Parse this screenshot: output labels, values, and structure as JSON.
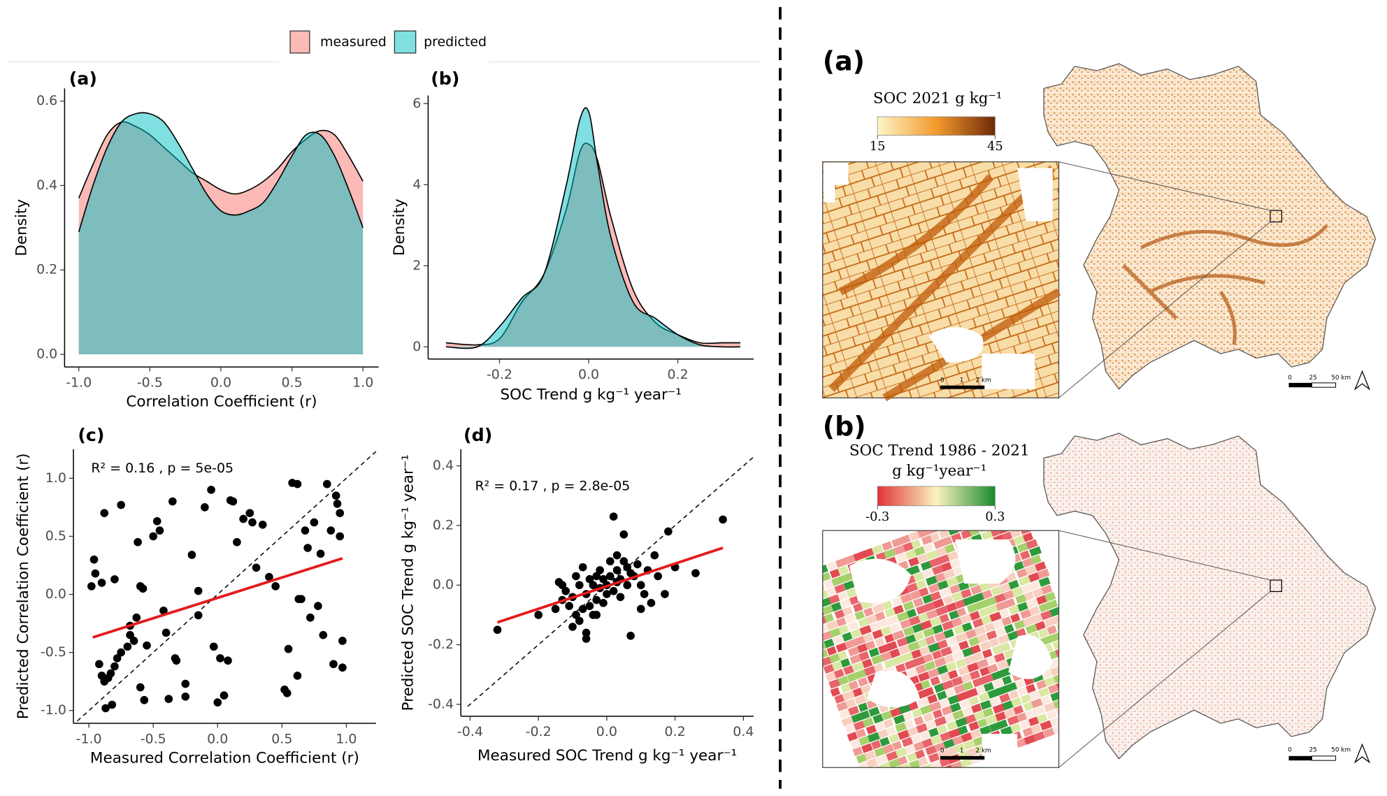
{
  "chart_data": [
    {
      "type": "area",
      "label": "(a)",
      "xlabel": "Correlation Coefficient (r)",
      "ylabel": "Density",
      "x": [
        -1,
        -0.9,
        -0.8,
        -0.7,
        -0.6,
        -0.5,
        -0.4,
        -0.3,
        -0.2,
        -0.1,
        0,
        0.1,
        0.2,
        0.3,
        0.4,
        0.5,
        0.6,
        0.7,
        0.8,
        0.9,
        1
      ],
      "series": [
        {
          "name": "measured",
          "color": "#f8766d",
          "values": [
            0.37,
            0.45,
            0.52,
            0.55,
            0.54,
            0.52,
            0.49,
            0.46,
            0.43,
            0.41,
            0.39,
            0.38,
            0.39,
            0.41,
            0.44,
            0.48,
            0.51,
            0.53,
            0.52,
            0.47,
            0.41
          ]
        },
        {
          "name": "predicted",
          "color": "#00bfc4",
          "values": [
            0.29,
            0.4,
            0.49,
            0.55,
            0.57,
            0.57,
            0.55,
            0.5,
            0.44,
            0.38,
            0.34,
            0.33,
            0.34,
            0.36,
            0.41,
            0.47,
            0.52,
            0.52,
            0.47,
            0.39,
            0.3
          ]
        }
      ],
      "xlim": [
        -1.1,
        1.11
      ],
      "ylim": [
        -0.03,
        0.63
      ],
      "xticks": [
        {
          "value": -1,
          "label": "-1.0"
        },
        -0.5,
        {
          "value": 0,
          "label": "0.0"
        },
        0.5,
        {
          "value": 1,
          "label": "1.0"
        }
      ],
      "yticks": [
        {
          "value": 0,
          "label": "0.0"
        },
        0.2,
        0.4,
        0.6
      ]
    },
    {
      "type": "area",
      "label": "(b)",
      "xlabel": "SOC Trend g kg⁻¹ year⁻¹",
      "ylabel": "Density",
      "x": [
        -0.32,
        -0.25,
        -0.2,
        -0.15,
        -0.1,
        -0.05,
        -0.02,
        0,
        0.02,
        0.05,
        0.1,
        0.15,
        0.2,
        0.25,
        0.3,
        0.34
      ],
      "series": [
        {
          "name": "measured",
          "color": "#f8766d",
          "values": [
            0.1,
            0.05,
            0.2,
            1.1,
            1.8,
            3.4,
            4.8,
            5.0,
            4.6,
            3.2,
            1.4,
            0.6,
            0.3,
            0.1,
            0.1,
            0.1
          ]
        },
        {
          "name": "predicted",
          "color": "#00bfc4",
          "values": [
            0,
            0,
            0.5,
            1.2,
            1.8,
            4.0,
            5.6,
            5.8,
            4.5,
            2.7,
            1.1,
            0.7,
            0.3,
            0.05,
            0,
            0
          ]
        }
      ],
      "xlim": [
        -0.36,
        0.37
      ],
      "ylim": [
        -0.3,
        6.2
      ],
      "xticks": [
        -0.2,
        {
          "value": 0,
          "label": "0.0"
        },
        0.2
      ],
      "yticks": [
        0,
        2,
        4,
        6
      ]
    },
    {
      "type": "scatter",
      "label": "(c)",
      "annotation": "R² = 0.16 , p = 5e-05",
      "xlabel": "Measured Correlation Coefficient (r)",
      "ylabel": "Predicted Correlation Coefficient (r)",
      "color": "#000000",
      "x": [
        -0.98,
        -0.96,
        -0.95,
        -0.9,
        -0.88,
        -0.8,
        -0.75,
        -0.92,
        -0.9,
        -0.88,
        -0.85,
        -0.83,
        -0.8,
        -0.78,
        -0.75,
        -0.7,
        -0.68,
        -0.65,
        -0.63,
        -0.62,
        -0.6,
        -0.58,
        -0.55,
        -0.5,
        -0.47,
        -0.45,
        -0.42,
        -0.4,
        -0.35,
        -0.33,
        -0.32,
        -0.25,
        -0.25,
        -0.2,
        -0.15,
        -0.1,
        -0.05,
        -0.03,
        0,
        0.02,
        0.05,
        0.08,
        0.1,
        0.12,
        0.15,
        0.2,
        0.25,
        0.27,
        0.3,
        0.35,
        0.4,
        0.45,
        0.52,
        0.54,
        0.55,
        0.58,
        0.62,
        0.63,
        0.65,
        0.68,
        0.7,
        0.72,
        0.75,
        0.78,
        0.8,
        0.82,
        0.85,
        0.88,
        0.9,
        0.92,
        0.93,
        0.95,
        0.95,
        0.97,
        0.97,
        -0.87,
        -0.82,
        -0.6,
        -0.57,
        -0.38,
        0.62,
        -0.15,
        -0.68
      ],
      "values": [
        0.07,
        0.3,
        0.18,
        0.1,
        0.7,
        0.13,
        0.77,
        -0.6,
        -0.7,
        -0.75,
        -0.72,
        -0.68,
        -0.62,
        -0.55,
        -0.5,
        -0.45,
        -0.27,
        -0.4,
        -0.2,
        0.45,
        0.07,
        0.05,
        -0.44,
        0.5,
        0.63,
        0.55,
        -0.14,
        -0.33,
        0.8,
        -0.55,
        -0.57,
        -0.77,
        -0.88,
        0.34,
        0.03,
        0.75,
        0.9,
        -0.45,
        -0.93,
        -0.55,
        -0.87,
        -0.57,
        0.81,
        0.8,
        0.45,
        0.65,
        0.7,
        0.62,
        0.23,
        0.6,
        0.15,
        0.07,
        -0.82,
        -0.85,
        -0.47,
        0.96,
        0.95,
        -0.04,
        -0.04,
        0.55,
        0.4,
        -0.2,
        0.62,
        -0.1,
        0.35,
        -0.35,
        0.95,
        0.55,
        -0.6,
        0.85,
        0.78,
        0.7,
        0.5,
        -0.63,
        -0.4,
        -0.98,
        -0.95,
        -0.8,
        -0.91,
        -0.9,
        -0.7,
        -0.18,
        -0.35
      ],
      "fit": {
        "color": "#e41a1c",
        "x": [
          -0.97,
          0.97
        ],
        "values": [
          -0.37,
          0.31
        ]
      },
      "xlim": [
        -1.12,
        1.23
      ],
      "ylim": [
        -1.11,
        1.25
      ],
      "xticks": [
        {
          "value": -1,
          "label": "-1.0"
        },
        -0.5,
        {
          "value": 0,
          "label": "0.0"
        },
        0.5,
        {
          "value": 1,
          "label": "1.0"
        }
      ],
      "yticks": [
        {
          "value": -1,
          "label": "-1.0"
        },
        -0.5,
        {
          "value": 0,
          "label": "0.0"
        },
        0.5,
        {
          "value": 1,
          "label": "1.0"
        }
      ]
    },
    {
      "type": "scatter",
      "label": "(d)",
      "annotation": "R² = 0.17 , p = 2.8e-05",
      "xlabel": "Measured SOC Trend g kg⁻¹ year⁻¹",
      "ylabel": "Predicted SOC Trend g kg⁻¹ year⁻¹",
      "color": "#000000",
      "x": [
        -0.32,
        -0.2,
        -0.15,
        -0.14,
        -0.13,
        -0.13,
        -0.12,
        -0.11,
        -0.1,
        -0.1,
        -0.09,
        -0.09,
        -0.08,
        -0.08,
        -0.07,
        -0.07,
        -0.06,
        -0.06,
        -0.06,
        -0.05,
        -0.05,
        -0.04,
        -0.04,
        -0.03,
        -0.03,
        -0.02,
        -0.02,
        -0.01,
        -0.01,
        0,
        0,
        0.01,
        0.01,
        0.02,
        0.02,
        0.03,
        0.03,
        0.04,
        0.04,
        0.05,
        0.05,
        0.06,
        0.06,
        0.07,
        0.07,
        0.08,
        0.09,
        0.1,
        0.1,
        0.11,
        0.12,
        0.13,
        0.14,
        0.15,
        0.17,
        0.18,
        0.2,
        0.26,
        0.34,
        -0.03,
        0.03
      ],
      "values": [
        -0.15,
        -0.1,
        -0.08,
        0.01,
        0,
        -0.05,
        -0.02,
        -0.07,
        -0.14,
        -0.04,
        0.03,
        -0.1,
        -0.12,
        0,
        -0.08,
        0.06,
        -0.18,
        -0.16,
        -0.03,
        0.02,
        -0.07,
        0,
        -0.1,
        -0.05,
        0.03,
        -0.01,
        0.05,
        0.02,
        -0.06,
        0,
        -0.03,
        0.08,
        0.03,
        0.23,
        -0.02,
        0.05,
        0.01,
        -0.04,
        0.02,
        0.08,
        0.17,
        0.06,
        0,
        -0.17,
        0.04,
        0.03,
        0.07,
        0,
        -0.08,
        -0.03,
        0.05,
        -0.06,
        0.1,
        0.03,
        -0.03,
        0.18,
        0.06,
        0.04,
        0.22,
        -0.1,
        0.1
      ],
      "fit": {
        "color": "#e41a1c",
        "x": [
          -0.32,
          0.34
        ],
        "values": [
          -0.125,
          0.125
        ]
      },
      "xlim": [
        -0.427,
        0.43
      ],
      "ylim": [
        -0.44,
        0.456
      ],
      "xticks": [
        -0.4,
        -0.2,
        {
          "value": 0,
          "label": "0.0"
        },
        0.2,
        0.4
      ],
      "yticks": [
        -0.4,
        -0.2,
        {
          "value": 0,
          "label": "0.0"
        },
        0.2,
        0.4
      ]
    }
  ],
  "maps": [
    {
      "label": "(a)",
      "colorbar_title": [
        "SOC 2021 g kg⁻¹"
      ],
      "colorbar_ticks": [
        15,
        45
      ],
      "colors": [
        "#fdf5c8",
        "#f39a2c",
        "#6e2a08"
      ],
      "inset_scale": [
        "0",
        "1",
        "2 km"
      ],
      "map_scale": [
        "0",
        "25",
        "50 km"
      ]
    },
    {
      "label": "(b)",
      "colorbar_title": [
        "SOC Trend 1986 - 2021",
        "g kg⁻¹year⁻¹"
      ],
      "colorbar_ticks": [
        -0.3,
        0.3
      ],
      "colors": [
        "#e0333a",
        "#fbf3bf",
        "#1b8a2c"
      ],
      "inset_scale": [
        "0",
        "1",
        "2 km"
      ],
      "map_scale": [
        "0",
        "25",
        "50 km"
      ]
    }
  ]
}
